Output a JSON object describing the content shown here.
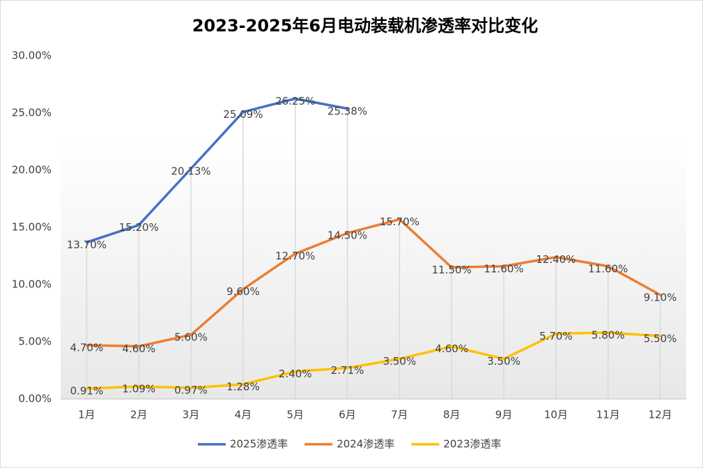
{
  "chart_data": {
    "type": "line",
    "title": "2023-2025年6月电动装载机渗透率对比变化",
    "categories": [
      "1月",
      "2月",
      "3月",
      "4月",
      "5月",
      "6月",
      "7月",
      "8月",
      "9月",
      "10月",
      "11月",
      "12月"
    ],
    "series": [
      {
        "name": "2025渗透率",
        "color": "#4472c4",
        "values": [
          13.7,
          15.2,
          20.13,
          25.09,
          26.25,
          25.38,
          null,
          null,
          null,
          null,
          null,
          null
        ],
        "value_labels": [
          "13.70%",
          "15.20%",
          "20.13%",
          "25.09%",
          "26.25%",
          "25.38%",
          null,
          null,
          null,
          null,
          null,
          null
        ]
      },
      {
        "name": "2024渗透率",
        "color": "#ed7d31",
        "values": [
          4.7,
          4.6,
          5.6,
          9.6,
          12.7,
          14.5,
          15.7,
          11.5,
          11.6,
          12.4,
          11.6,
          9.1
        ],
        "value_labels": [
          "4.70%",
          "4.60%",
          "5.60%",
          "9.60%",
          "12.70%",
          "14.50%",
          "15.70%",
          "11.50%",
          "11.60%",
          "12.40%",
          "11.60%",
          "9.10%"
        ]
      },
      {
        "name": "2023渗透率",
        "color": "#ffc000",
        "values": [
          0.91,
          1.09,
          0.97,
          1.28,
          2.4,
          2.71,
          3.5,
          4.6,
          3.5,
          5.7,
          5.8,
          5.5
        ],
        "value_labels": [
          "0.91%",
          "1.09%",
          "0.97%",
          "1.28%",
          "2.40%",
          "2.71%",
          "3.50%",
          "4.60%",
          "3.50%",
          "5.70%",
          "5.80%",
          "5.50%"
        ]
      }
    ],
    "ylim": [
      0,
      30
    ],
    "yticks": [
      {
        "value": 0,
        "label": "0.00%"
      },
      {
        "value": 5,
        "label": "5.00%"
      },
      {
        "value": 10,
        "label": "10.00%"
      },
      {
        "value": 15,
        "label": "15.00%"
      },
      {
        "value": 20,
        "label": "20.00%"
      },
      {
        "value": 25,
        "label": "25.00%"
      },
      {
        "value": 30,
        "label": "30.00%"
      }
    ],
    "legend": "bottom"
  }
}
